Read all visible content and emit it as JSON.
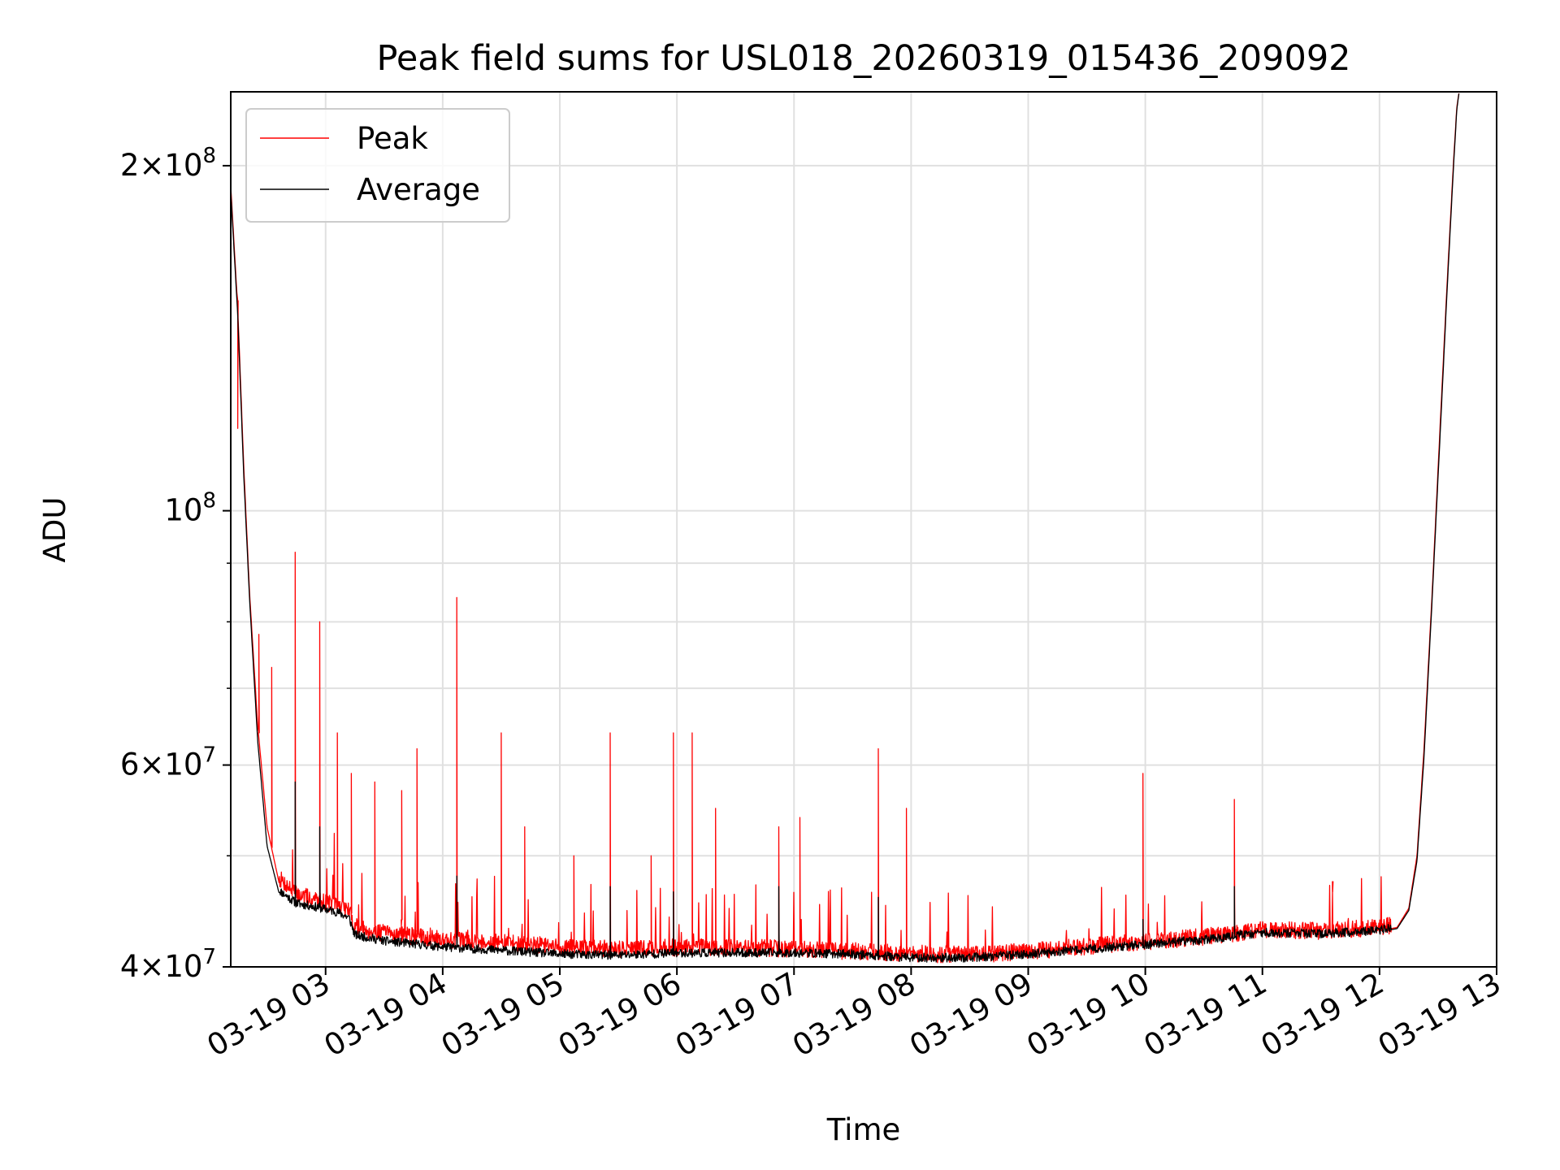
{
  "chart_data": {
    "type": "line",
    "title": "Peak field sums for USL018_20260319_015436_209092",
    "xlabel": "Time",
    "ylabel": "ADU",
    "yscale": "log",
    "ylim": [
      40000000,
      232000000
    ],
    "xlim_hours": [
      2.19,
      13.0
    ],
    "grid": true,
    "legend_position": "upper-left",
    "x_tick_labels": [
      {
        "hour": 3,
        "label": "03-19 03"
      },
      {
        "hour": 4,
        "label": "03-19 04"
      },
      {
        "hour": 5,
        "label": "03-19 05"
      },
      {
        "hour": 6,
        "label": "03-19 06"
      },
      {
        "hour": 7,
        "label": "03-19 07"
      },
      {
        "hour": 8,
        "label": "03-19 08"
      },
      {
        "hour": 9,
        "label": "03-19 09"
      },
      {
        "hour": 10,
        "label": "03-19 10"
      },
      {
        "hour": 11,
        "label": "03-19 11"
      },
      {
        "hour": 12,
        "label": "03-19 12"
      },
      {
        "hour": 13,
        "label": "03-19 13"
      }
    ],
    "y_tick_labels": [
      {
        "value": 40000000,
        "mantissa": "4",
        "exponent": "7"
      },
      {
        "value": 60000000,
        "mantissa": "6",
        "exponent": "7"
      },
      {
        "value": 100000000,
        "mantissa": "",
        "exponent": "8"
      },
      {
        "value": 200000000,
        "mantissa": "2",
        "exponent": "8"
      }
    ],
    "times_sign": "×",
    "base_ten": "10",
    "series": [
      {
        "name": "Peak",
        "color": "#ff0000",
        "baseline": {
          "hours": [
            2.19,
            2.25,
            2.3,
            2.35,
            2.42,
            2.5,
            2.6,
            2.75,
            2.9,
            3.1,
            3.2,
            3.25,
            3.5,
            4.0,
            4.5,
            5.0,
            5.5,
            6.0,
            6.5,
            7.0,
            7.5,
            8.0,
            8.5,
            9.0,
            9.5,
            10.0,
            10.5,
            11.0,
            11.5,
            12.0,
            12.15,
            12.25,
            12.32,
            12.38,
            12.45,
            12.52,
            12.58,
            12.63,
            12.66,
            12.68
          ],
          "values": [
            192000000,
            150000000,
            110000000,
            85000000,
            65000000,
            53000000,
            47500000,
            46000000,
            45500000,
            45000000,
            44500000,
            43000000,
            42500000,
            42000000,
            41700000,
            41300000,
            41200000,
            41300000,
            41300000,
            41200000,
            41000000,
            40800000,
            40700000,
            41000000,
            41400000,
            41800000,
            42200000,
            42800000,
            42700000,
            43000000,
            43300000,
            45000000,
            50000000,
            62000000,
            85000000,
            120000000,
            160000000,
            200000000,
            225000000,
            232000000
          ]
        },
        "spikes": [
          {
            "hour": 2.25,
            "value": 118000000
          },
          {
            "hour": 2.43,
            "value": 78000000
          },
          {
            "hour": 2.54,
            "value": 73000000
          },
          {
            "hour": 2.74,
            "value": 92000000
          },
          {
            "hour": 2.95,
            "value": 80000000
          },
          {
            "hour": 3.1,
            "value": 64000000
          },
          {
            "hour": 3.22,
            "value": 59000000
          },
          {
            "hour": 3.42,
            "value": 58000000
          },
          {
            "hour": 3.65,
            "value": 57000000
          },
          {
            "hour": 3.78,
            "value": 62000000
          },
          {
            "hour": 4.12,
            "value": 84000000
          },
          {
            "hour": 4.5,
            "value": 64000000
          },
          {
            "hour": 4.7,
            "value": 53000000
          },
          {
            "hour": 5.12,
            "value": 50000000
          },
          {
            "hour": 5.43,
            "value": 64000000
          },
          {
            "hour": 5.78,
            "value": 50000000
          },
          {
            "hour": 5.97,
            "value": 64000000
          },
          {
            "hour": 6.13,
            "value": 64000000
          },
          {
            "hour": 6.33,
            "value": 55000000
          },
          {
            "hour": 6.87,
            "value": 53000000
          },
          {
            "hour": 7.05,
            "value": 54000000
          },
          {
            "hour": 7.72,
            "value": 62000000
          },
          {
            "hour": 7.96,
            "value": 55000000
          },
          {
            "hour": 9.98,
            "value": 59000000
          },
          {
            "hour": 10.76,
            "value": 56000000
          },
          {
            "hour": 11.6,
            "value": 46500000
          }
        ]
      },
      {
        "name": "Average",
        "color": "#000000",
        "baseline": {
          "hours": [
            2.19,
            2.25,
            2.3,
            2.35,
            2.42,
            2.5,
            2.6,
            2.75,
            2.9,
            3.1,
            3.2,
            3.25,
            3.5,
            4.0,
            4.5,
            5.0,
            5.5,
            6.0,
            6.5,
            7.0,
            7.5,
            8.0,
            8.5,
            9.0,
            9.5,
            10.0,
            10.5,
            11.0,
            11.5,
            12.0,
            12.15,
            12.25,
            12.32,
            12.38,
            12.45,
            12.52,
            12.58,
            12.63,
            12.66,
            12.68
          ],
          "values": [
            190000000,
            148000000,
            108000000,
            84000000,
            63000000,
            51000000,
            46500000,
            45300000,
            45000000,
            44500000,
            44000000,
            42500000,
            42000000,
            41500000,
            41200000,
            40900000,
            40800000,
            41000000,
            41000000,
            41000000,
            40900000,
            40600000,
            40600000,
            40900000,
            41300000,
            41700000,
            42100000,
            42700000,
            42600000,
            42900000,
            43200000,
            44800000,
            49500000,
            61000000,
            84000000,
            118000000,
            158000000,
            198000000,
            224000000,
            232000000
          ]
        },
        "spikes": [
          {
            "hour": 2.74,
            "value": 58000000
          },
          {
            "hour": 2.95,
            "value": 53000000
          },
          {
            "hour": 4.12,
            "value": 48000000
          },
          {
            "hour": 5.43,
            "value": 47000000
          },
          {
            "hour": 5.97,
            "value": 46500000
          },
          {
            "hour": 6.87,
            "value": 47000000
          },
          {
            "hour": 7.72,
            "value": 46000000
          },
          {
            "hour": 9.98,
            "value": 44000000
          },
          {
            "hour": 10.76,
            "value": 47000000
          }
        ]
      }
    ]
  }
}
